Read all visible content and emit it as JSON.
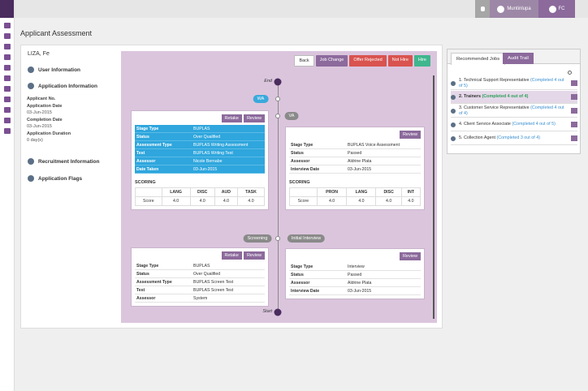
{
  "topbar": {
    "location": "Muntinlupa",
    "user": "FC"
  },
  "page_title": "Applicant Assessment",
  "applicant": {
    "name": "LIZA, Fe",
    "user_info": "User Information",
    "application_info": {
      "title": "Application Information",
      "fields": [
        {
          "label": "Applicant No."
        },
        {
          "label": "Application Date",
          "value": "03-Jun-2015"
        },
        {
          "label": "Completion Date",
          "value": "03-Jun-2015"
        },
        {
          "label": "Application Duration",
          "value": "0 day(s)"
        }
      ]
    },
    "recruitment_info": "Recruitment Information",
    "application_flags": "Application Flags"
  },
  "actions": [
    "Back",
    "Job Change",
    "Offer Rejected",
    "Not Hire",
    "Hire"
  ],
  "timeline": {
    "end": "End",
    "start": "Start",
    "upper_stages": [
      "WA",
      "VA"
    ],
    "lower_stages": [
      "Screening",
      "Initial Interview"
    ]
  },
  "cards": [
    {
      "buttons": [
        "Retake",
        "Review"
      ],
      "rows": [
        [
          "Stage Type",
          "BUPLAS"
        ],
        [
          "Status",
          "Over Qualified"
        ],
        [
          "Assessment Type",
          "BUPLAS Writing Assessment"
        ],
        [
          "Test",
          "BUPLAS Writing Test"
        ],
        [
          "Assessor",
          "Nicole Bernabe"
        ],
        [
          "Date Taken",
          "03-Jun-2015"
        ]
      ],
      "scoring": {
        "title": "SCORING",
        "headers": [
          "LANG",
          "DISC",
          "AUD",
          "TASK"
        ],
        "row_label": "Score",
        "values": [
          "4.0",
          "4.0",
          "4.0",
          "4.0"
        ]
      }
    },
    {
      "buttons": [
        "Review"
      ],
      "rows": [
        [
          "Stage Type",
          "BUPLAS Voice Assessment"
        ],
        [
          "Status",
          "Passed"
        ],
        [
          "Assessor",
          "Aldrine Plata"
        ],
        [
          "Interview Date",
          "03-Jun-2015"
        ]
      ],
      "scoring": {
        "title": "SCORING",
        "headers": [
          "PRON",
          "LANG",
          "DISC",
          "INT"
        ],
        "row_label": "Score",
        "values": [
          "4.0",
          "4.0",
          "4.0",
          "4.0"
        ]
      }
    },
    {
      "buttons": [
        "Retake",
        "Review"
      ],
      "rows": [
        [
          "Stage Type",
          "BUPLAS"
        ],
        [
          "Status",
          "Over Qualified"
        ],
        [
          "Assessment Type",
          "BUPLAS Screen Test"
        ],
        [
          "Test",
          "BUPLAS Screen Test"
        ],
        [
          "Assessor",
          "System"
        ]
      ]
    },
    {
      "buttons": [
        "Review"
      ],
      "rows": [
        [
          "Stage Type",
          "Interview"
        ],
        [
          "Status",
          "Passed"
        ],
        [
          "Assessor",
          "Aldrine Plata"
        ],
        [
          "Interview Date",
          "03-Jun-2015"
        ]
      ]
    }
  ],
  "recommended_jobs": {
    "tabs": [
      "Recommended Jobs",
      "Audit Trail"
    ],
    "items": [
      {
        "title": "1. Technical Support Representative",
        "status": "(Completed 4 out of 5)"
      },
      {
        "title": "2. Trainers",
        "status": "(Completed 4 out of 4)"
      },
      {
        "title": "3. Customer Service Representative",
        "status": "(Completed 4 out of 4)"
      },
      {
        "title": "4. Client Service Associate",
        "status": "(Completed 4 out of 5)"
      },
      {
        "title": "5. Collection Agent",
        "status": "(Completed 3 out of 4)"
      }
    ]
  }
}
